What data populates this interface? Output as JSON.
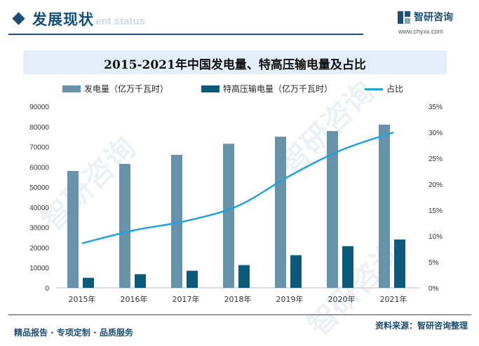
{
  "header": {
    "section_title": "发展现状",
    "section_subtitle": "ent status",
    "brand_name": "智研咨询",
    "brand_url": "www.chyxx.com",
    "accent_color": "#1c4f73"
  },
  "chart_data": {
    "type": "bar",
    "title": "2015-2021年中国发电量、特高压输电量及占比",
    "categories": [
      "2015年",
      "2016年",
      "2017年",
      "2018年",
      "2019年",
      "2020年",
      "2021年"
    ],
    "series": [
      {
        "name": "发电量（亿万千瓦时）",
        "type": "bar",
        "axis": "left",
        "color": "#6693a9",
        "values": [
          58000,
          61500,
          66000,
          71500,
          75000,
          77800,
          81000
        ]
      },
      {
        "name": "特高压输电量（亿万千瓦时）",
        "type": "bar",
        "axis": "left",
        "color": "#0e5a7b",
        "values": [
          5000,
          6800,
          8500,
          11300,
          16200,
          20700,
          24000
        ]
      },
      {
        "name": "占比",
        "type": "line",
        "axis": "right",
        "color": "#1ea3dc",
        "values": [
          8.6,
          11.1,
          12.9,
          15.8,
          21.6,
          26.6,
          30.0
        ]
      }
    ],
    "y_left": {
      "min": 0,
      "max": 90000,
      "step": 10000
    },
    "y_right": {
      "min": 0,
      "max": 35,
      "step": 5,
      "unit": "%"
    },
    "legend_position": "top",
    "grid": false
  },
  "footer": {
    "left_text": "精品报告 · 专项定制 · 品质服务",
    "source": "资料来源：智研咨询整理"
  },
  "watermark": "智研咨询"
}
